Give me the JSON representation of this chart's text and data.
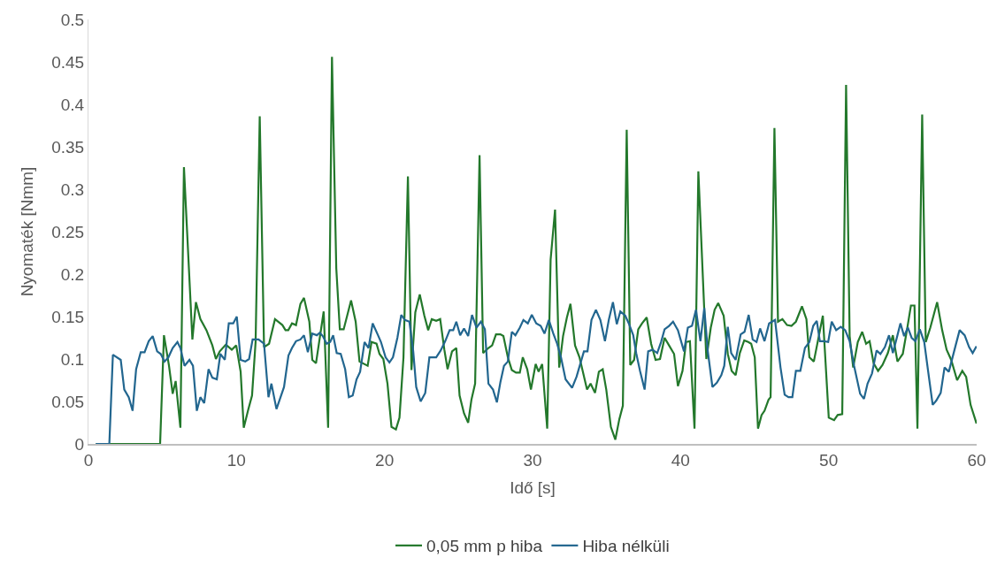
{
  "chart_data": {
    "type": "line",
    "xlabel": "Idő [s]",
    "ylabel": "Nyomaték [Nmm]",
    "xlim": [
      0,
      60
    ],
    "xticks": [
      0,
      10,
      20,
      30,
      40,
      50,
      60
    ],
    "ylim": [
      0,
      0.5
    ],
    "yticks": [
      0,
      0.05,
      0.1,
      0.15,
      0.2,
      0.25,
      0.3,
      0.35,
      0.4,
      0.45,
      0.5
    ],
    "grid": false,
    "legend": "bottom",
    "marker": "none",
    "line_style": "solid",
    "series": [
      {
        "name": "0,05 mm p hiba",
        "color": "#23782b",
        "x": [
          0.5,
          4.84,
          5.1,
          5.44,
          5.69,
          5.89,
          6.21,
          6.45,
          7.02,
          7.26,
          7.56,
          7.97,
          8.37,
          8.61,
          8.87,
          9.28,
          9.68,
          9.98,
          10.28,
          10.49,
          10.79,
          11.05,
          11.29,
          11.57,
          11.86,
          12.2,
          12.6,
          13.1,
          13.31,
          13.5,
          13.75,
          14.02,
          14.32,
          14.56,
          14.92,
          15.12,
          15.37,
          15.89,
          16.19,
          16.45,
          16.74,
          16.98,
          17.24,
          17.74,
          18.05,
          18.31,
          18.86,
          19.12,
          19.46,
          19.66,
          19.92,
          20.2,
          20.47,
          20.77,
          21.01,
          21.28,
          21.58,
          21.82,
          22.08,
          22.38,
          22.69,
          22.95,
          23.19,
          23.49,
          23.76,
          24.04,
          24.26,
          24.56,
          24.85,
          25.07,
          25.37,
          25.65,
          25.87,
          26.12,
          26.42,
          26.66,
          27.02,
          27.27,
          27.53,
          27.83,
          28.03,
          28.33,
          28.6,
          28.88,
          29.14,
          29.34,
          29.64,
          29.89,
          30.21,
          30.41,
          30.65,
          30.99,
          31.22,
          31.52,
          31.8,
          32.06,
          32.32,
          32.56,
          32.87,
          33.17,
          33.68,
          33.92,
          34.22,
          34.48,
          34.74,
          34.98,
          35.29,
          35.59,
          35.86,
          36.1,
          36.36,
          36.6,
          36.86,
          37.14,
          37.4,
          37.71,
          38.01,
          38.31,
          38.61,
          38.92,
          39.22,
          39.56,
          39.82,
          40.13,
          40.37,
          40.63,
          40.94,
          41.2,
          41.74,
          42.04,
          42.3,
          42.54,
          42.91,
          43.19,
          43.45,
          43.72,
          44.0,
          44.3,
          44.57,
          44.77,
          45.01,
          45.23,
          45.47,
          45.67,
          45.94,
          46.08,
          46.34,
          46.58,
          46.88,
          47.19,
          47.49,
          47.79,
          48.2,
          48.5,
          48.7,
          49.0,
          49.35,
          49.61,
          50.01,
          50.37,
          50.61,
          50.92,
          51.18,
          51.42,
          51.66,
          51.97,
          52.27,
          52.53,
          52.77,
          53.04,
          53.34,
          53.64,
          54.0,
          54.34,
          54.65,
          55.01,
          55.29,
          55.56,
          55.8,
          56.0,
          56.32,
          56.56,
          56.87,
          57.33,
          57.67,
          57.97,
          58.28,
          58.68,
          59.03,
          59.29,
          59.59,
          59.99
        ],
        "values": [
          0,
          0,
          0.128,
          0.092,
          0.059,
          0.074,
          0.019,
          0.326,
          0.123,
          0.167,
          0.147,
          0.134,
          0.116,
          0.1,
          0.109,
          0.117,
          0.111,
          0.116,
          0.085,
          0.019,
          0.04,
          0.057,
          0.12,
          0.386,
          0.114,
          0.118,
          0.147,
          0.14,
          0.134,
          0.134,
          0.142,
          0.14,
          0.165,
          0.172,
          0.144,
          0.099,
          0.095,
          0.156,
          0.019,
          0.456,
          0.207,
          0.135,
          0.135,
          0.169,
          0.144,
          0.097,
          0.092,
          0.12,
          0.118,
          0.106,
          0.1,
          0.071,
          0.02,
          0.017,
          0.031,
          0.102,
          0.315,
          0.087,
          0.155,
          0.176,
          0.151,
          0.134,
          0.147,
          0.145,
          0.147,
          0.111,
          0.088,
          0.109,
          0.113,
          0.057,
          0.036,
          0.025,
          0.052,
          0.071,
          0.34,
          0.107,
          0.113,
          0.116,
          0.129,
          0.129,
          0.127,
          0.102,
          0.087,
          0.084,
          0.084,
          0.102,
          0.088,
          0.064,
          0.094,
          0.085,
          0.094,
          0.018,
          0.217,
          0.276,
          0.09,
          0.127,
          0.149,
          0.165,
          0.116,
          0.102,
          0.064,
          0.071,
          0.06,
          0.085,
          0.088,
          0.064,
          0.02,
          0.005,
          0.029,
          0.045,
          0.37,
          0.093,
          0.099,
          0.135,
          0.142,
          0.149,
          0.118,
          0.099,
          0.1,
          0.125,
          0.116,
          0.106,
          0.068,
          0.086,
          0.12,
          0.121,
          0.018,
          0.321,
          0.1,
          0.137,
          0.158,
          0.166,
          0.151,
          0.106,
          0.086,
          0.081,
          0.107,
          0.122,
          0.12,
          0.118,
          0.102,
          0.018,
          0.034,
          0.039,
          0.052,
          0.055,
          0.372,
          0.144,
          0.147,
          0.14,
          0.139,
          0.144,
          0.162,
          0.147,
          0.102,
          0.097,
          0.128,
          0.151,
          0.031,
          0.028,
          0.034,
          0.035,
          0.423,
          0.127,
          0.09,
          0.12,
          0.132,
          0.118,
          0.121,
          0.095,
          0.086,
          0.093,
          0.107,
          0.128,
          0.097,
          0.106,
          0.134,
          0.163,
          0.163,
          0.018,
          0.388,
          0.12,
          0.137,
          0.167,
          0.134,
          0.111,
          0.099,
          0.075,
          0.086,
          0.079,
          0.046,
          0.024
        ]
      },
      {
        "name": "Hiba nélküli",
        "color": "#22668f",
        "x": [
          0.5,
          1.41,
          1.65,
          2.18,
          2.42,
          2.72,
          2.98,
          3.22,
          3.53,
          3.79,
          4.07,
          4.34,
          4.64,
          4.88,
          5.14,
          5.4,
          5.69,
          6.01,
          6.21,
          6.49,
          6.82,
          7.06,
          7.32,
          7.56,
          7.82,
          8.11,
          8.37,
          8.67,
          8.91,
          9.21,
          9.48,
          9.78,
          10.02,
          10.28,
          10.59,
          10.85,
          11.09,
          11.49,
          11.86,
          12.16,
          12.36,
          12.7,
          13.21,
          13.51,
          13.75,
          14.02,
          14.32,
          14.56,
          14.82,
          15.12,
          15.43,
          15.63,
          15.83,
          16.09,
          16.33,
          16.53,
          16.77,
          17.04,
          17.34,
          17.59,
          17.85,
          18.11,
          18.35,
          18.65,
          18.92,
          19.2,
          19.56,
          19.76,
          20.07,
          20.33,
          20.57,
          20.87,
          21.13,
          21.37,
          21.68,
          21.94,
          22.14,
          22.44,
          22.75,
          23.03,
          23.49,
          23.79,
          24.1,
          24.4,
          24.64,
          24.85,
          25.11,
          25.37,
          25.65,
          25.91,
          26.21,
          26.51,
          26.78,
          27.02,
          27.33,
          27.59,
          27.83,
          28.07,
          28.33,
          28.6,
          28.84,
          29.14,
          29.38,
          29.68,
          29.95,
          30.25,
          30.55,
          30.81,
          31.1,
          31.4,
          31.66,
          31.92,
          32.23,
          32.67,
          32.97,
          33.27,
          33.47,
          33.71,
          33.98,
          34.28,
          34.58,
          34.89,
          35.15,
          35.43,
          35.69,
          35.93,
          36.26,
          36.5,
          36.8,
          37.0,
          37.26,
          37.57,
          37.81,
          38.11,
          38.42,
          38.68,
          38.92,
          39.22,
          39.49,
          39.82,
          40.23,
          40.49,
          40.77,
          41.04,
          41.34,
          41.6,
          41.84,
          42.15,
          42.45,
          42.75,
          42.95,
          43.19,
          43.42,
          43.72,
          44.06,
          44.32,
          44.6,
          44.87,
          45.13,
          45.37,
          45.67,
          45.98,
          46.38,
          46.75,
          47.03,
          47.29,
          47.55,
          47.79,
          48.09,
          48.4,
          48.7,
          48.96,
          49.2,
          49.41,
          49.71,
          49.97,
          50.21,
          50.51,
          50.82,
          51.12,
          51.42,
          51.72,
          52.13,
          52.39,
          52.63,
          52.93,
          53.24,
          53.5,
          53.8,
          54.08,
          54.34,
          54.65,
          54.85,
          55.1,
          55.35,
          55.61,
          55.86,
          56.16,
          56.46,
          56.71,
          57.03,
          57.27,
          57.57,
          57.83,
          58.12,
          58.58,
          58.85,
          59.19,
          59.49,
          59.73,
          59.99
        ],
        "values": [
          0,
          0,
          0.105,
          0.099,
          0.064,
          0.055,
          0.039,
          0.088,
          0.108,
          0.108,
          0.121,
          0.127,
          0.109,
          0.106,
          0.097,
          0.102,
          0.113,
          0.12,
          0.113,
          0.092,
          0.099,
          0.092,
          0.039,
          0.055,
          0.048,
          0.088,
          0.078,
          0.076,
          0.106,
          0.099,
          0.142,
          0.142,
          0.15,
          0.099,
          0.097,
          0.1,
          0.123,
          0.123,
          0.118,
          0.055,
          0.071,
          0.041,
          0.067,
          0.104,
          0.113,
          0.121,
          0.123,
          0.128,
          0.108,
          0.13,
          0.128,
          0.131,
          0.127,
          0.118,
          0.12,
          0.128,
          0.107,
          0.106,
          0.088,
          0.055,
          0.057,
          0.076,
          0.085,
          0.12,
          0.113,
          0.142,
          0.128,
          0.12,
          0.102,
          0.096,
          0.102,
          0.125,
          0.152,
          0.146,
          0.144,
          0.109,
          0.067,
          0.05,
          0.06,
          0.102,
          0.102,
          0.11,
          0.121,
          0.134,
          0.134,
          0.144,
          0.128,
          0.136,
          0.127,
          0.152,
          0.137,
          0.144,
          0.135,
          0.071,
          0.064,
          0.049,
          0.073,
          0.092,
          0.097,
          0.132,
          0.128,
          0.137,
          0.146,
          0.142,
          0.152,
          0.142,
          0.139,
          0.13,
          0.146,
          0.13,
          0.118,
          0.102,
          0.076,
          0.066,
          0.079,
          0.097,
          0.109,
          0.109,
          0.146,
          0.158,
          0.146,
          0.121,
          0.146,
          0.167,
          0.141,
          0.156,
          0.151,
          0.142,
          0.128,
          0.107,
          0.086,
          0.064,
          0.109,
          0.111,
          0.107,
          0.12,
          0.135,
          0.139,
          0.144,
          0.134,
          0.109,
          0.137,
          0.139,
          0.158,
          0.121,
          0.16,
          0.109,
          0.067,
          0.072,
          0.081,
          0.092,
          0.138,
          0.107,
          0.099,
          0.129,
          0.132,
          0.152,
          0.123,
          0.12,
          0.136,
          0.121,
          0.142,
          0.146,
          0.09,
          0.058,
          0.055,
          0.055,
          0.086,
          0.086,
          0.113,
          0.12,
          0.139,
          0.145,
          0.121,
          0.121,
          0.12,
          0.144,
          0.134,
          0.138,
          0.134,
          0.121,
          0.092,
          0.059,
          0.053,
          0.071,
          0.083,
          0.11,
          0.106,
          0.114,
          0.128,
          0.107,
          0.128,
          0.142,
          0.127,
          0.137,
          0.125,
          0.121,
          0.135,
          0.12,
          0.087,
          0.046,
          0.051,
          0.06,
          0.09,
          0.085,
          0.116,
          0.134,
          0.128,
          0.114,
          0.107,
          0.115
        ]
      }
    ]
  }
}
